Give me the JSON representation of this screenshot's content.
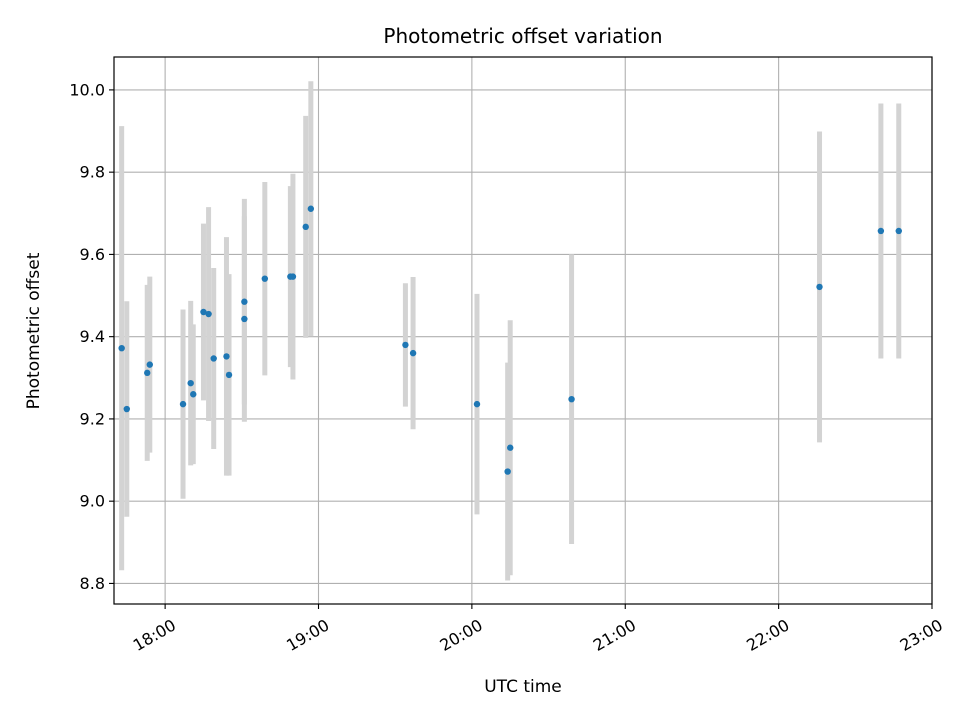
{
  "chart_data": {
    "type": "scatter",
    "title": "Photometric offset variation",
    "xlabel": "UTC time",
    "ylabel": "Photometric offset",
    "x_unit": "UTC time of day",
    "xlim": [
      "17:40",
      "23:00"
    ],
    "ylim": [
      8.75,
      10.08
    ],
    "x_ticks": [
      "18:00",
      "19:00",
      "20:00",
      "21:00",
      "22:00",
      "23:00"
    ],
    "y_ticks": [
      "8.8",
      "9.0",
      "9.2",
      "9.4",
      "9.6",
      "9.8",
      "10.0"
    ],
    "grid": true,
    "colors": {
      "point": "#1f77b4",
      "errorbar": "#d3d3d3",
      "grid": "#b0b0b0"
    },
    "points": [
      {
        "x": "17:43",
        "y": 9.372,
        "yerr": 0.54
      },
      {
        "x": "17:45",
        "y": 9.224,
        "yerr": 0.262
      },
      {
        "x": "17:53",
        "y": 9.312,
        "yerr": 0.214
      },
      {
        "x": "17:54",
        "y": 9.332,
        "yerr": 0.214
      },
      {
        "x": "18:07",
        "y": 9.236,
        "yerr": 0.23
      },
      {
        "x": "18:10",
        "y": 9.287,
        "yerr": 0.2
      },
      {
        "x": "18:11",
        "y": 9.26,
        "yerr": 0.17
      },
      {
        "x": "18:15",
        "y": 9.46,
        "yerr": 0.215
      },
      {
        "x": "18:17",
        "y": 9.455,
        "yerr": 0.26
      },
      {
        "x": "18:19",
        "y": 9.347,
        "yerr": 0.22
      },
      {
        "x": "18:24",
        "y": 9.352,
        "yerr": 0.29
      },
      {
        "x": "18:25",
        "y": 9.307,
        "yerr": 0.245
      },
      {
        "x": "18:31",
        "y": 9.485,
        "yerr": 0.25
      },
      {
        "x": "18:31",
        "y": 9.443,
        "yerr": 0.25
      },
      {
        "x": "18:39",
        "y": 9.541,
        "yerr": 0.235
      },
      {
        "x": "18:49",
        "y": 9.546,
        "yerr": 0.22
      },
      {
        "x": "18:50",
        "y": 9.546,
        "yerr": 0.25
      },
      {
        "x": "18:55",
        "y": 9.667,
        "yerr": 0.27
      },
      {
        "x": "18:57",
        "y": 9.711,
        "yerr": 0.31
      },
      {
        "x": "19:34",
        "y": 9.38,
        "yerr": 0.15
      },
      {
        "x": "19:37",
        "y": 9.36,
        "yerr": 0.185
      },
      {
        "x": "20:02",
        "y": 9.236,
        "yerr": 0.268
      },
      {
        "x": "20:14",
        "y": 9.072,
        "yerr": 0.265
      },
      {
        "x": "20:15",
        "y": 9.13,
        "yerr": 0.31
      },
      {
        "x": "20:39",
        "y": 9.248,
        "yerr": 0.352
      },
      {
        "x": "22:16",
        "y": 9.521,
        "yerr": 0.378
      },
      {
        "x": "22:40",
        "y": 9.657,
        "yerr": 0.31
      },
      {
        "x": "22:47",
        "y": 9.657,
        "yerr": 0.31
      }
    ]
  }
}
